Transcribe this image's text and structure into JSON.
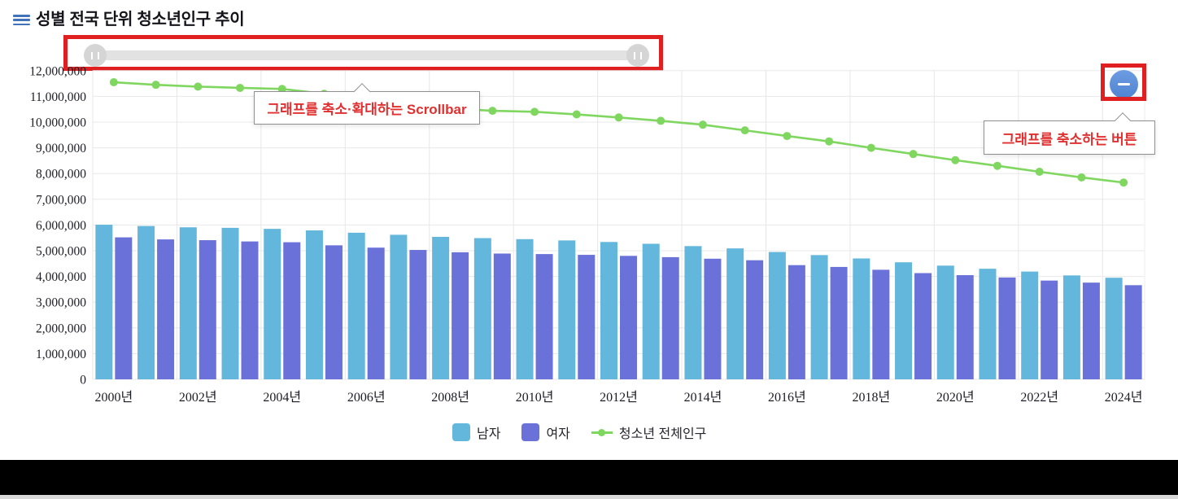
{
  "header": {
    "title": "성별 전국 단위 청소년인구 추이"
  },
  "annotations": {
    "scrollbar_note": "그래프를 축소·확대하는 Scrollbar",
    "zoom_out_note": "그래프를 축소하는 버튼"
  },
  "colors": {
    "male_bar": "#63B7DC",
    "female_bar": "#6A72DA",
    "total_line": "#7FD75F",
    "annotation_red": "#E02020",
    "callout_text_red": "#E03030",
    "menu_icon_blue": "#4273B8",
    "minus_button_blue": "#5589D6",
    "scroll_track": "#e2e2e2",
    "scroll_handle": "#d5d5d5"
  },
  "legend": [
    {
      "label": "남자",
      "color": "#63B7DC",
      "type": "bar"
    },
    {
      "label": "여자",
      "color": "#6A72DA",
      "type": "bar"
    },
    {
      "label": "청소년 전체인구",
      "color": "#7FD75F",
      "type": "line"
    }
  ],
  "chart_data": {
    "type": "bar",
    "subtype": "bars-with-line-overlay",
    "title": "성별 전국 단위 청소년인구 추이",
    "xlabel": "",
    "ylabel": "",
    "ylim": [
      0,
      12000000
    ],
    "y_tick_interval": 1000000,
    "x_tick_step": 2,
    "grid": true,
    "legend_position": "bottom",
    "categories": [
      "2000년",
      "2001년",
      "2002년",
      "2003년",
      "2004년",
      "2005년",
      "2006년",
      "2007년",
      "2008년",
      "2009년",
      "2010년",
      "2011년",
      "2012년",
      "2013년",
      "2014년",
      "2015년",
      "2016년",
      "2017년",
      "2018년",
      "2019년",
      "2020년",
      "2021년",
      "2022년",
      "2023년",
      "2024년"
    ],
    "series": [
      {
        "name": "남자",
        "type": "bar",
        "color": "#63B7DC",
        "values": [
          6010000,
          5960000,
          5910000,
          5890000,
          5850000,
          5790000,
          5700000,
          5620000,
          5540000,
          5490000,
          5450000,
          5400000,
          5340000,
          5270000,
          5180000,
          5090000,
          4950000,
          4830000,
          4700000,
          4550000,
          4420000,
          4300000,
          4190000,
          4040000,
          3950000
        ]
      },
      {
        "name": "여자",
        "type": "bar",
        "color": "#6A72DA",
        "values": [
          5520000,
          5440000,
          5410000,
          5360000,
          5330000,
          5210000,
          5120000,
          5030000,
          4940000,
          4890000,
          4870000,
          4840000,
          4800000,
          4750000,
          4690000,
          4630000,
          4440000,
          4370000,
          4260000,
          4130000,
          4050000,
          3960000,
          3840000,
          3760000,
          3660000
        ]
      },
      {
        "name": "청소년 전체인구",
        "type": "line",
        "color": "#7FD75F",
        "values": [
          11550000,
          11450000,
          11380000,
          11330000,
          11290000,
          11100000,
          10900000,
          10700000,
          10530000,
          10440000,
          10400000,
          10300000,
          10180000,
          10050000,
          9900000,
          9680000,
          9460000,
          9250000,
          9000000,
          8760000,
          8520000,
          8300000,
          8070000,
          7850000,
          7650000
        ]
      }
    ]
  }
}
